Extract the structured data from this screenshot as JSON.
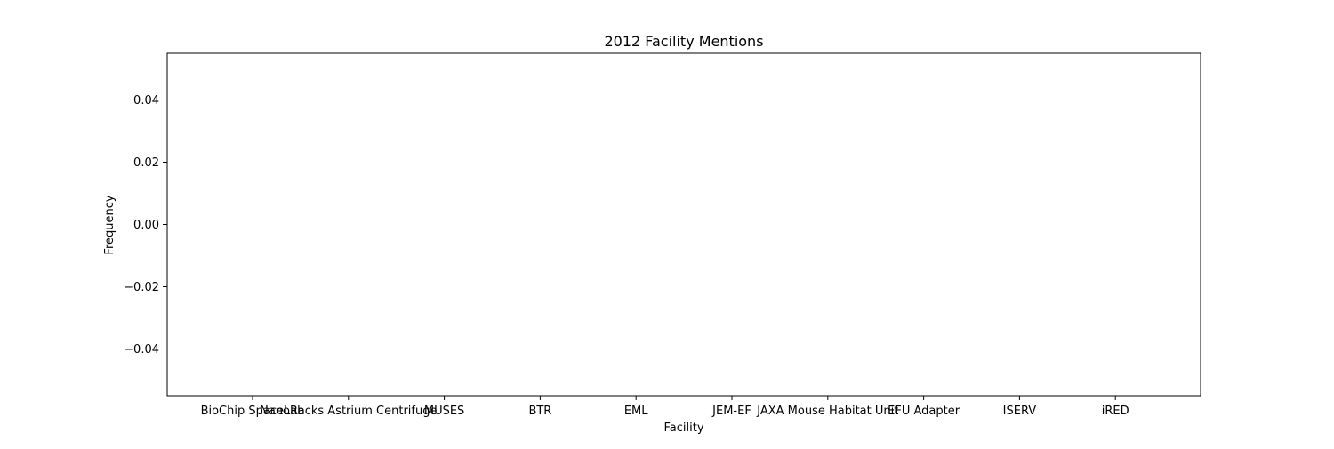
{
  "chart_data": {
    "type": "bar",
    "title": "2012 Facility Mentions",
    "xlabel": "Facility",
    "ylabel": "Frequency",
    "categories": [
      "BioChip SpaceLab",
      "NanoRacks Astrium Centrifuge",
      "MUSES",
      "BTR",
      "EML",
      "JEM-EF",
      "JAXA Mouse Habitat Unit",
      "EFU Adapter",
      "ISERV",
      "iRED"
    ],
    "values": [
      0,
      0,
      0,
      0,
      0,
      0,
      0,
      0,
      0,
      0
    ],
    "ylim": [
      -0.055,
      0.055
    ],
    "yticks": [
      -0.04,
      -0.02,
      0.0,
      0.02,
      0.04
    ],
    "ytick_labels": [
      "−0.04",
      "−0.02",
      "0.00",
      "0.02",
      "0.04"
    ],
    "grid": false,
    "colors": {
      "axes": "#000000",
      "background": "#ffffff"
    }
  }
}
